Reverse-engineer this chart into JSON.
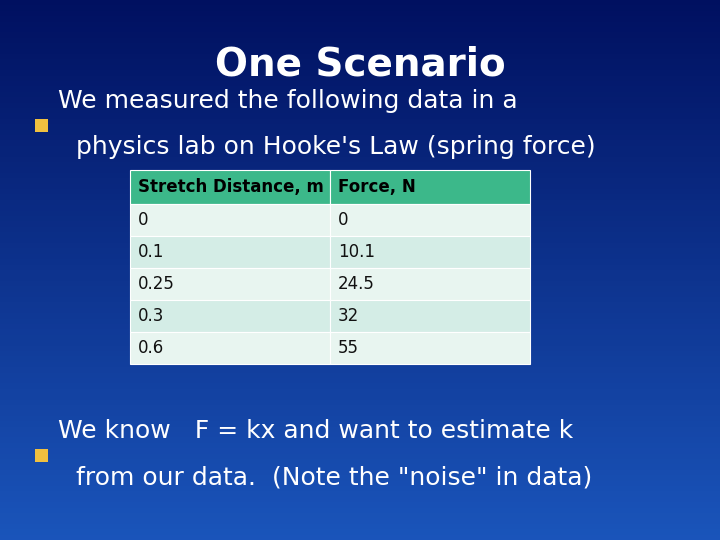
{
  "title": "One Scenario",
  "bg_color": "#1a3a8c",
  "bg_gradient_top": "#001a6e",
  "bg_gradient_bottom": "#1a4aaa",
  "title_color": "#ffffff",
  "title_fontsize": 28,
  "bullet_color": "#ffffff",
  "bullet_square_color": "#f0c040",
  "bullet1_line1": "We measured the following data in a",
  "bullet1_line2": "physics lab on Hooke's Law (spring force)",
  "bullet2_line1": "We know   F = kx and want to estimate k",
  "bullet2_line2": "from our data.  (Note the \"noise\" in data)",
  "table_header_bg": "#3cb88a",
  "table_header_text": "#000000",
  "table_row_bg_alt1": "#e8f5f0",
  "table_row_bg_alt2": "#d4ede6",
  "table_col1_header": "Stretch Distance, m",
  "table_col2_header": "Force, N",
  "table_data": [
    [
      "0",
      "0"
    ],
    [
      "0.1",
      "10.1"
    ],
    [
      "0.25",
      "24.5"
    ],
    [
      "0.3",
      "32"
    ],
    [
      "0.6",
      "55"
    ]
  ],
  "text_fontsize": 18,
  "table_fontsize": 12
}
